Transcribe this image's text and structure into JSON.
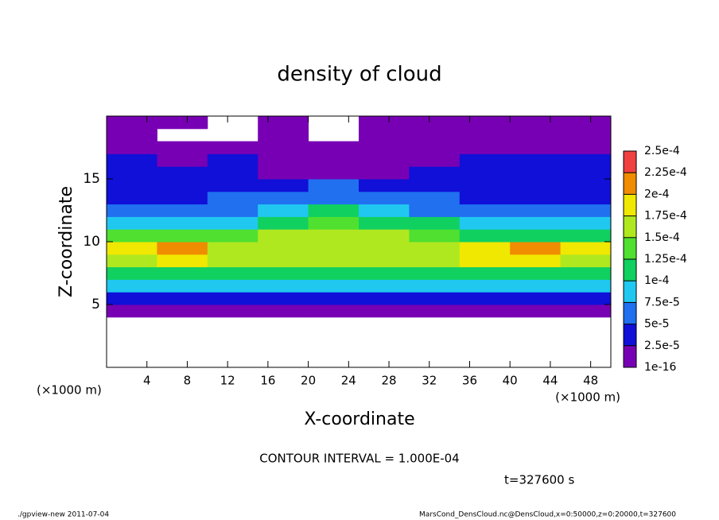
{
  "chart_data": {
    "type": "heatmap",
    "title": "density of cloud",
    "xlabel": "X-coordinate",
    "ylabel": "Z-coordinate",
    "x_unit": "(×1000 m)",
    "y_unit": "(×1000 m)",
    "contour_note": "CONTOUR INTERVAL = 1.000E-04",
    "time_label": "t=327600 s",
    "footer_left": "./gpview-new  2011-07-04",
    "footer_right": "MarsCond_DensCloud.nc@DensCloud,x=0:50000,z=0:20000,t=327600",
    "xlim": [
      0,
      50
    ],
    "ylim": [
      0,
      20
    ],
    "xticks": [
      4,
      8,
      12,
      16,
      20,
      24,
      28,
      32,
      36,
      40,
      44,
      48
    ],
    "yticks": [
      5,
      10,
      15
    ],
    "x": [
      2.5,
      7.5,
      12.5,
      17.5,
      22.5,
      27.5,
      32.5,
      37.5,
      42.5,
      47.5
    ],
    "y": [
      0.5,
      1.5,
      2.5,
      3.5,
      4.5,
      5.5,
      6.5,
      7.5,
      8.5,
      9.5,
      10.5,
      11.5,
      12.5,
      13.5,
      14.5,
      15.5,
      16.5,
      17.5,
      18.5,
      19.5
    ],
    "z": [
      [
        null,
        null,
        null,
        null,
        null,
        null,
        null,
        null,
        null,
        null
      ],
      [
        null,
        null,
        null,
        null,
        null,
        null,
        null,
        null,
        null,
        null
      ],
      [
        null,
        null,
        null,
        null,
        null,
        null,
        null,
        null,
        null,
        null
      ],
      [
        null,
        null,
        null,
        null,
        null,
        null,
        null,
        null,
        null,
        null
      ],
      [
        1e-05,
        1e-05,
        1e-05,
        1e-05,
        1e-05,
        1e-05,
        1e-05,
        1e-05,
        1e-05,
        1e-05
      ],
      [
        4e-05,
        4e-05,
        4e-05,
        4e-05,
        4e-05,
        4e-05,
        4e-05,
        4e-05,
        4e-05,
        4e-05
      ],
      [
        8e-05,
        8e-05,
        8e-05,
        8e-05,
        8e-05,
        8e-05,
        8e-05,
        8e-05,
        8e-05,
        8e-05
      ],
      [
        0.000115,
        0.000115,
        0.000115,
        0.000115,
        0.000115,
        0.000115,
        0.000115,
        0.000115,
        0.000115,
        0.000115
      ],
      [
        0.00017,
        0.00019,
        0.00016,
        0.00015,
        0.00015,
        0.00015,
        0.00016,
        0.00018,
        0.00019,
        0.00017
      ],
      [
        0.00018,
        0.0002,
        0.00017,
        0.00015,
        0.00015,
        0.00015,
        0.00016,
        0.00019,
        0.0002,
        0.00018
      ],
      [
        0.00013,
        0.00014,
        0.00013,
        0.00015,
        0.00016,
        0.00015,
        0.00013,
        0.00012,
        0.00012,
        0.00012
      ],
      [
        9e-05,
        9e-05,
        9e-05,
        0.00012,
        0.00013,
        0.00012,
        0.0001,
        8e-05,
        8e-05,
        8e-05
      ],
      [
        6e-05,
        6e-05,
        6e-05,
        8e-05,
        0.0001,
        9e-05,
        7e-05,
        6e-05,
        6e-05,
        6e-05
      ],
      [
        4.5e-05,
        4.5e-05,
        5e-05,
        6e-05,
        7e-05,
        6.5e-05,
        5.5e-05,
        4.5e-05,
        4.5e-05,
        4.5e-05
      ],
      [
        3.5e-05,
        3.5e-05,
        4e-05,
        4.5e-05,
        5e-05,
        4.5e-05,
        4e-05,
        3.5e-05,
        3.5e-05,
        3.5e-05
      ],
      [
        2.8e-05,
        2.8e-05,
        3e-05,
        2e-05,
        2e-05,
        2e-05,
        2.8e-05,
        2.8e-05,
        2.8e-05,
        2.8e-05
      ],
      [
        2.6e-05,
        2e-05,
        2.6e-05,
        1.5e-05,
        1.5e-05,
        1.5e-05,
        2e-05,
        2.6e-05,
        2.6e-05,
        2.6e-05
      ],
      [
        1.5e-05,
        1e-05,
        1e-05,
        1e-05,
        1e-05,
        1e-05,
        1e-05,
        1e-05,
        1e-05,
        1e-05
      ],
      [
        1e-05,
        null,
        null,
        1e-05,
        null,
        1e-05,
        1e-05,
        1e-05,
        1e-05,
        1e-05
      ],
      [
        1e-05,
        1e-05,
        null,
        1e-05,
        null,
        1e-05,
        1e-05,
        1e-05,
        1e-05,
        1e-05
      ]
    ],
    "levels": [
      {
        "value": 1e-16,
        "label": "1e-16"
      },
      {
        "value": 2.5e-05,
        "label": "2.5e-5"
      },
      {
        "value": 5e-05,
        "label": "5e-5"
      },
      {
        "value": 7.5e-05,
        "label": "7.5e-5"
      },
      {
        "value": 0.0001,
        "label": "1e-4"
      },
      {
        "value": 0.000125,
        "label": "1.25e-4"
      },
      {
        "value": 0.00015,
        "label": "1.5e-4"
      },
      {
        "value": 0.000175,
        "label": "1.75e-4"
      },
      {
        "value": 0.0002,
        "label": "2e-4"
      },
      {
        "value": 0.000225,
        "label": "2.25e-4"
      },
      {
        "value": 0.00025,
        "label": "2.5e-4"
      }
    ],
    "colors": [
      "#7800b4",
      "#1010d8",
      "#2070f0",
      "#20c8f0",
      "#10d060",
      "#50e030",
      "#b0e820",
      "#f0e800",
      "#f08c00",
      "#f04040"
    ]
  }
}
